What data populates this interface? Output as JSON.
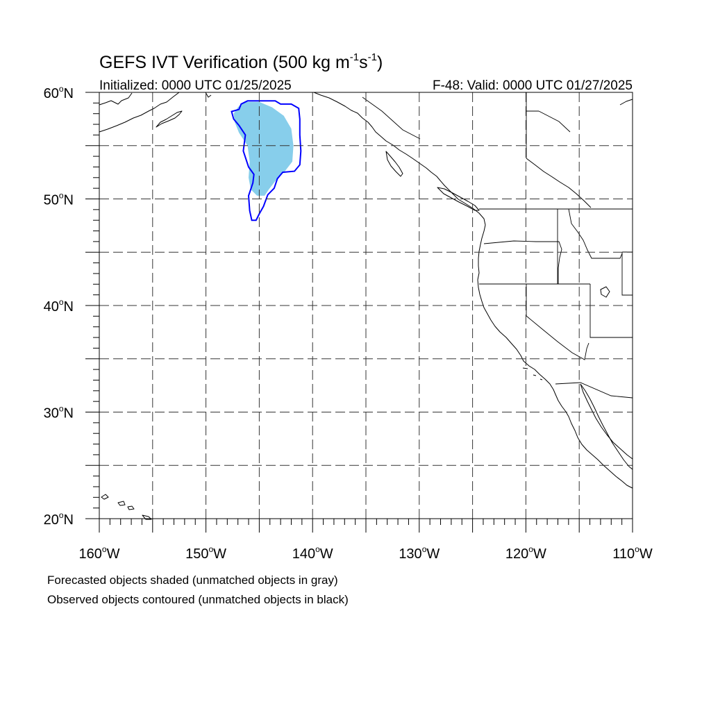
{
  "title_main": "GEFS IVT Verification (500 kg m",
  "title_sup1": "-1",
  "title_mid": "s",
  "title_sup2": "-1",
  "title_close": ")",
  "initialized": "Initialized: 0000 UTC 01/25/2025",
  "valid": "F-48: Valid: 0000 UTC 01/27/2025",
  "footnote_1": "Forecasted objects shaded (unmatched objects in gray)",
  "footnote_2": "Observed objects contoured (unmatched objects in black)",
  "colors": {
    "forecast_fill": "#87ceeb",
    "observed_contour": "#0000ff",
    "grid": "#333333"
  },
  "map": {
    "lon_range": [
      -160,
      -110
    ],
    "lat_range": [
      20,
      60
    ],
    "major_lon": [
      -160,
      -155,
      -150,
      -145,
      -140,
      -135,
      -130,
      -125,
      -120,
      -115,
      -110
    ],
    "major_lat": [
      20,
      25,
      30,
      35,
      40,
      45,
      50,
      55,
      60
    ],
    "lon_labels": [
      {
        "lon": -160,
        "text": "160",
        "hemi": "W"
      },
      {
        "lon": -150,
        "text": "150",
        "hemi": "W"
      },
      {
        "lon": -140,
        "text": "140",
        "hemi": "W"
      },
      {
        "lon": -130,
        "text": "130",
        "hemi": "W"
      },
      {
        "lon": -120,
        "text": "120",
        "hemi": "W"
      },
      {
        "lon": -110,
        "text": "110",
        "hemi": "W"
      }
    ],
    "lat_labels": [
      {
        "lat": 60,
        "text": "60",
        "hemi": "N"
      },
      {
        "lat": 50,
        "text": "50",
        "hemi": "N"
      },
      {
        "lat": 40,
        "text": "40",
        "hemi": "N"
      },
      {
        "lat": 30,
        "text": "30",
        "hemi": "N"
      },
      {
        "lat": 20,
        "text": "20",
        "hemi": "N"
      }
    ],
    "forecast_object": [
      [
        -146.2,
        59.1
      ],
      [
        -145.0,
        59.1
      ],
      [
        -143.8,
        58.6
      ],
      [
        -142.7,
        57.8
      ],
      [
        -142.0,
        56.6
      ],
      [
        -141.8,
        55.0
      ],
      [
        -141.9,
        53.5
      ],
      [
        -142.6,
        52.6
      ],
      [
        -143.4,
        51.8
      ],
      [
        -144.1,
        50.9
      ],
      [
        -144.5,
        50.3
      ],
      [
        -145.2,
        50.3
      ],
      [
        -145.8,
        50.9
      ],
      [
        -146.0,
        52.0
      ],
      [
        -145.9,
        53.5
      ],
      [
        -146.1,
        55.0
      ],
      [
        -146.9,
        56.2
      ],
      [
        -147.3,
        57.2
      ],
      [
        -147.4,
        58.0
      ],
      [
        -147.0,
        58.6
      ],
      [
        -146.6,
        59.0
      ]
    ],
    "observed_object": [
      [
        -145.4,
        59.2
      ],
      [
        -143.5,
        59.2
      ],
      [
        -143.0,
        58.9
      ],
      [
        -142.0,
        58.9
      ],
      [
        -141.3,
        58.5
      ],
      [
        -141.2,
        57.5
      ],
      [
        -141.2,
        56.0
      ],
      [
        -141.1,
        54.5
      ],
      [
        -141.2,
        53.2
      ],
      [
        -141.7,
        52.6
      ],
      [
        -142.8,
        52.5
      ],
      [
        -143.3,
        51.9
      ],
      [
        -143.6,
        51.0
      ],
      [
        -144.2,
        50.4
      ],
      [
        -144.6,
        49.3
      ],
      [
        -145.0,
        48.6
      ],
      [
        -145.3,
        48.0
      ],
      [
        -145.7,
        48.0
      ],
      [
        -145.9,
        48.9
      ],
      [
        -146.0,
        50.3
      ],
      [
        -145.6,
        51.5
      ],
      [
        -145.5,
        52.3
      ],
      [
        -146.0,
        53.0
      ],
      [
        -146.5,
        54.5
      ],
      [
        -146.3,
        56.0
      ],
      [
        -146.9,
        56.9
      ],
      [
        -147.4,
        57.5
      ],
      [
        -147.6,
        58.2
      ],
      [
        -146.9,
        58.4
      ],
      [
        -146.7,
        58.9
      ],
      [
        -146.1,
        59.2
      ]
    ]
  }
}
